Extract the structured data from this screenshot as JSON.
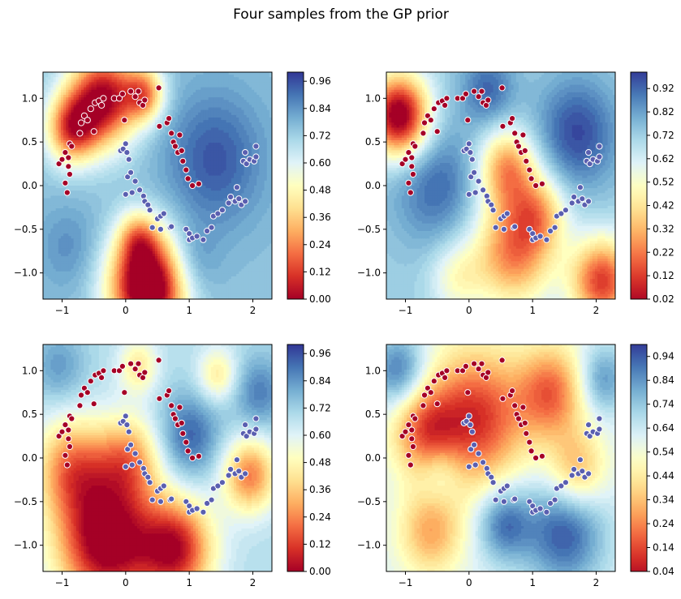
{
  "figure": {
    "suptitle": "Four samples from the GP prior"
  },
  "colormap": {
    "name": "RdYlBu",
    "stops": [
      "#a50026",
      "#d73027",
      "#f46d43",
      "#fdae61",
      "#fee090",
      "#ffffbf",
      "#e0f3f8",
      "#abd9e9",
      "#74add1",
      "#4575b4",
      "#313695"
    ]
  },
  "point_colors": {
    "class0": "#a50026",
    "class1": "#5a5fb0",
    "edge": "#ffffff"
  },
  "chart_data": [
    {
      "type": "heatmap",
      "title": "",
      "xlim": [
        -1.3,
        2.3
      ],
      "ylim": [
        -1.3,
        1.3
      ],
      "xticks": [
        -1,
        0,
        1,
        2
      ],
      "yticks": [
        -1.0,
        -0.5,
        0.0,
        0.5,
        1.0
      ],
      "colorbar": {
        "min": 0.0,
        "max": 1.0,
        "ticks": [
          "0.00",
          "0.12",
          "0.24",
          "0.36",
          "0.48",
          "0.60",
          "0.72",
          "0.84",
          "0.96"
        ]
      },
      "field": {
        "base": 0.75,
        "bumps": [
          [
            -0.35,
            1.0,
            -0.75,
            0.38
          ],
          [
            -0.85,
            0.65,
            -0.55,
            0.28
          ],
          [
            0.3,
            1.05,
            -0.45,
            0.22
          ],
          [
            0.35,
            -1.15,
            -0.95,
            0.42
          ],
          [
            0.2,
            -0.6,
            -0.3,
            0.22
          ],
          [
            1.4,
            0.3,
            0.2,
            0.55
          ],
          [
            -0.9,
            -0.7,
            0.1,
            0.35
          ],
          [
            1.0,
            -0.9,
            0.15,
            0.3
          ]
        ]
      }
    },
    {
      "type": "heatmap",
      "title": "",
      "xlim": [
        -1.3,
        2.3
      ],
      "ylim": [
        -1.3,
        1.3
      ],
      "xticks": [
        -1,
        0,
        1,
        2
      ],
      "yticks": [
        -1.0,
        -0.5,
        0.0,
        0.5,
        1.0
      ],
      "colorbar": {
        "min": 0.02,
        "max": 0.99,
        "ticks": [
          "0.02",
          "0.12",
          "0.22",
          "0.32",
          "0.42",
          "0.52",
          "0.62",
          "0.72",
          "0.82",
          "0.92"
        ]
      },
      "field": {
        "base": 0.72,
        "bumps": [
          [
            -1.1,
            0.8,
            -0.8,
            0.33
          ],
          [
            0.7,
            -0.75,
            -0.5,
            0.45
          ],
          [
            0.6,
            0.2,
            -0.45,
            0.32
          ],
          [
            2.1,
            -1.1,
            -0.6,
            0.35
          ],
          [
            1.1,
            -0.3,
            -0.3,
            0.3
          ],
          [
            -0.2,
            -1.05,
            -0.2,
            0.3
          ],
          [
            -0.5,
            0.0,
            0.2,
            0.5
          ],
          [
            1.7,
            0.6,
            0.25,
            0.45
          ],
          [
            0.3,
            1.1,
            0.2,
            0.3
          ]
        ]
      }
    },
    {
      "type": "heatmap",
      "title": "",
      "xlim": [
        -1.3,
        2.3
      ],
      "ylim": [
        -1.3,
        1.3
      ],
      "xticks": [
        -1,
        0,
        1,
        2
      ],
      "yticks": [
        -1.0,
        -0.5,
        0.0,
        0.5,
        1.0
      ],
      "colorbar": {
        "min": 0.0,
        "max": 1.0,
        "ticks": [
          "0.00",
          "0.12",
          "0.24",
          "0.36",
          "0.48",
          "0.60",
          "0.72",
          "0.84",
          "0.96"
        ]
      },
      "field": {
        "base": 0.68,
        "bumps": [
          [
            -0.3,
            -0.95,
            -0.75,
            0.55
          ],
          [
            0.8,
            -1.05,
            -0.6,
            0.4
          ],
          [
            -0.85,
            -0.1,
            -0.4,
            0.4
          ],
          [
            0.05,
            0.0,
            -0.35,
            0.35
          ],
          [
            1.95,
            -0.2,
            -0.45,
            0.3
          ],
          [
            0.2,
            1.05,
            -0.25,
            0.22
          ],
          [
            1.45,
            0.95,
            -0.25,
            0.22
          ],
          [
            1.0,
            0.25,
            0.25,
            0.35
          ],
          [
            -1.05,
            1.05,
            0.15,
            0.3
          ],
          [
            2.1,
            0.75,
            0.2,
            0.3
          ]
        ]
      }
    },
    {
      "type": "heatmap",
      "title": "",
      "xlim": [
        -1.3,
        2.3
      ],
      "ylim": [
        -1.3,
        1.3
      ],
      "xticks": [
        -1,
        0,
        1,
        2
      ],
      "yticks": [
        -1.0,
        -0.5,
        0.0,
        0.5,
        1.0
      ],
      "colorbar": {
        "min": 0.04,
        "max": 0.99,
        "ticks": [
          "0.04",
          "0.14",
          "0.24",
          "0.34",
          "0.44",
          "0.54",
          "0.64",
          "0.74",
          "0.84",
          "0.94"
        ]
      },
      "field": {
        "base": 0.6,
        "bumps": [
          [
            0.1,
            0.45,
            -0.5,
            0.55
          ],
          [
            -0.7,
            0.3,
            -0.35,
            0.35
          ],
          [
            1.3,
            0.75,
            -0.4,
            0.38
          ],
          [
            1.7,
            -0.15,
            -0.3,
            0.32
          ],
          [
            -0.6,
            -0.85,
            -0.3,
            0.35
          ],
          [
            1.5,
            -0.85,
            0.35,
            0.45
          ],
          [
            0.55,
            -0.75,
            0.3,
            0.3
          ],
          [
            -1.1,
            1.0,
            0.3,
            0.3
          ],
          [
            2.1,
            0.9,
            0.25,
            0.28
          ],
          [
            -0.45,
            -0.15,
            0.15,
            0.25
          ]
        ]
      }
    }
  ],
  "points": {
    "class0": [
      [
        -1.05,
        0.25
      ],
      [
        -1.0,
        0.3
      ],
      [
        -0.95,
        0.38
      ],
      [
        -0.9,
        0.32
      ],
      [
        -0.88,
        0.48
      ],
      [
        -0.85,
        0.45
      ],
      [
        -0.9,
        0.22
      ],
      [
        -0.88,
        0.13
      ],
      [
        -0.95,
        0.03
      ],
      [
        -0.92,
        -0.08
      ],
      [
        -0.72,
        0.6
      ],
      [
        -0.7,
        0.72
      ],
      [
        -0.65,
        0.8
      ],
      [
        -0.6,
        0.75
      ],
      [
        -0.55,
        0.88
      ],
      [
        -0.5,
        0.62
      ],
      [
        -0.48,
        0.95
      ],
      [
        -0.42,
        0.97
      ],
      [
        -0.38,
        0.92
      ],
      [
        -0.35,
        1.0
      ],
      [
        -0.18,
        1.0
      ],
      [
        -0.1,
        1.0
      ],
      [
        -0.05,
        1.05
      ],
      [
        -0.02,
        0.75
      ],
      [
        0.08,
        1.08
      ],
      [
        0.15,
        1.02
      ],
      [
        0.2,
        1.08
      ],
      [
        0.22,
        0.95
      ],
      [
        0.27,
        0.92
      ],
      [
        0.3,
        0.98
      ],
      [
        0.52,
        1.12
      ],
      [
        0.53,
        0.68
      ],
      [
        0.65,
        0.72
      ],
      [
        0.68,
        0.77
      ],
      [
        0.72,
        0.6
      ],
      [
        0.75,
        0.5
      ],
      [
        0.78,
        0.45
      ],
      [
        0.82,
        0.38
      ],
      [
        0.85,
        0.58
      ],
      [
        0.88,
        0.4
      ],
      [
        0.9,
        0.28
      ],
      [
        0.95,
        0.18
      ],
      [
        0.98,
        0.08
      ],
      [
        1.05,
        0.0
      ],
      [
        1.15,
        0.02
      ]
    ],
    "class1": [
      [
        -0.08,
        0.4
      ],
      [
        -0.04,
        0.42
      ],
      [
        0.0,
        0.48
      ],
      [
        0.02,
        0.38
      ],
      [
        0.05,
        0.3
      ],
      [
        0.03,
        0.1
      ],
      [
        0.08,
        0.15
      ],
      [
        0.0,
        -0.1
      ],
      [
        0.1,
        -0.08
      ],
      [
        0.15,
        0.05
      ],
      [
        0.22,
        -0.05
      ],
      [
        0.28,
        -0.12
      ],
      [
        0.3,
        -0.18
      ],
      [
        0.35,
        -0.22
      ],
      [
        0.38,
        -0.28
      ],
      [
        0.42,
        -0.48
      ],
      [
        0.5,
        -0.38
      ],
      [
        0.55,
        -0.35
      ],
      [
        0.6,
        -0.32
      ],
      [
        0.55,
        -0.5
      ],
      [
        0.7,
        -0.48
      ],
      [
        0.72,
        -0.47
      ],
      [
        0.95,
        -0.5
      ],
      [
        1.0,
        -0.55
      ],
      [
        1.0,
        -0.62
      ],
      [
        1.05,
        -0.6
      ],
      [
        1.12,
        -0.58
      ],
      [
        1.22,
        -0.62
      ],
      [
        1.28,
        -0.52
      ],
      [
        1.35,
        -0.48
      ],
      [
        1.38,
        -0.35
      ],
      [
        1.45,
        -0.32
      ],
      [
        1.52,
        -0.28
      ],
      [
        1.62,
        -0.2
      ],
      [
        1.65,
        -0.13
      ],
      [
        1.72,
        -0.18
      ],
      [
        1.78,
        -0.15
      ],
      [
        1.82,
        -0.22
      ],
      [
        1.88,
        -0.18
      ],
      [
        1.85,
        0.28
      ],
      [
        1.88,
        0.38
      ],
      [
        1.9,
        0.25
      ],
      [
        1.95,
        0.3
      ],
      [
        2.02,
        0.28
      ],
      [
        2.05,
        0.33
      ],
      [
        2.05,
        0.45
      ],
      [
        1.75,
        -0.02
      ]
    ]
  }
}
